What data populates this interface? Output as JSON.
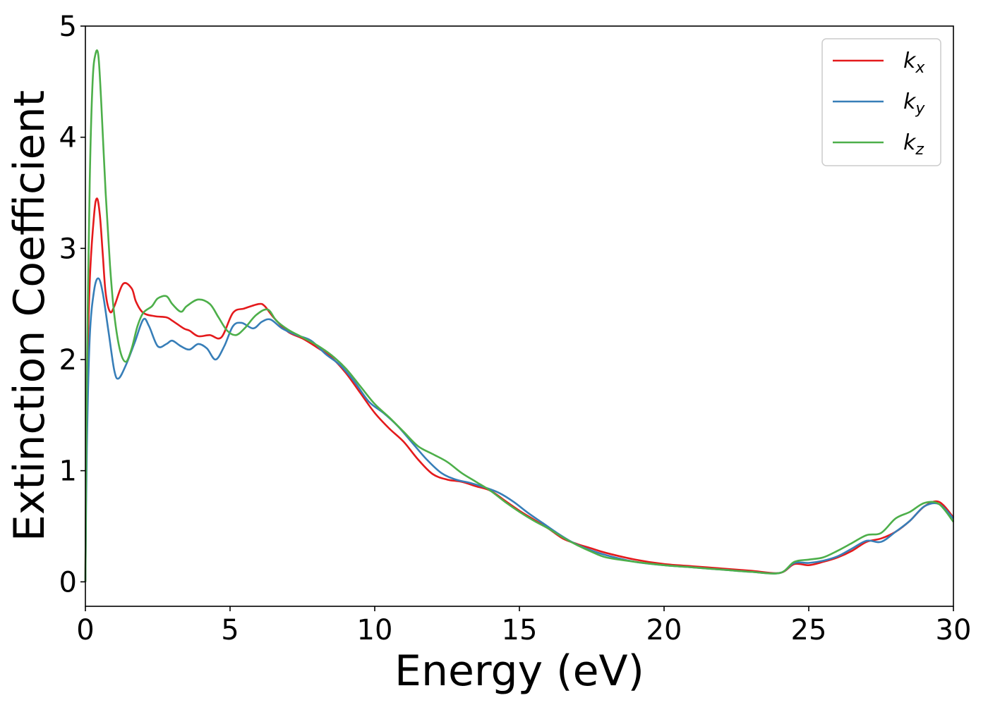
{
  "chart_data": {
    "type": "line",
    "title": "",
    "xlabel": "Energy (eV)",
    "ylabel": "Extinction Coefficient",
    "xlim": [
      0,
      30
    ],
    "ylim": [
      -0.22,
      5.0
    ],
    "xticks": [
      0,
      5,
      10,
      15,
      20,
      25,
      30
    ],
    "yticks": [
      0,
      1,
      2,
      3,
      4,
      5
    ],
    "grid": false,
    "legend": "top-right",
    "series": [
      {
        "name": "k_x",
        "label_base": "k",
        "label_sub": "x",
        "color": "#e41a1c",
        "x": [
          0,
          0.05,
          0.15,
          0.3,
          0.4,
          0.5,
          0.6,
          0.7,
          0.85,
          1.0,
          1.3,
          1.6,
          1.75,
          2.0,
          2.4,
          2.8,
          3.0,
          3.4,
          3.6,
          3.9,
          4.3,
          4.7,
          5.1,
          5.5,
          6.0,
          6.2,
          6.5,
          7.0,
          7.5,
          8.0,
          8.5,
          9.0,
          9.5,
          10.0,
          10.5,
          11.0,
          11.5,
          12.0,
          12.5,
          13.0,
          13.5,
          14.0,
          14.5,
          15.0,
          15.5,
          16.0,
          16.5,
          17.0,
          17.5,
          18.0,
          19.0,
          20.0,
          21.0,
          22.0,
          23.0,
          24.0,
          24.5,
          25.0,
          25.5,
          26.0,
          26.5,
          27.0,
          27.5,
          28.0,
          28.5,
          29.0,
          29.5,
          30.0
        ],
        "y": [
          0,
          1.6,
          2.7,
          3.3,
          3.45,
          3.3,
          2.95,
          2.6,
          2.43,
          2.48,
          2.68,
          2.64,
          2.52,
          2.42,
          2.39,
          2.38,
          2.35,
          2.28,
          2.26,
          2.21,
          2.22,
          2.2,
          2.42,
          2.46,
          2.5,
          2.48,
          2.38,
          2.25,
          2.19,
          2.11,
          2.02,
          1.88,
          1.7,
          1.52,
          1.38,
          1.26,
          1.1,
          0.97,
          0.92,
          0.9,
          0.86,
          0.82,
          0.73,
          0.64,
          0.56,
          0.48,
          0.39,
          0.34,
          0.3,
          0.26,
          0.2,
          0.16,
          0.14,
          0.12,
          0.1,
          0.08,
          0.16,
          0.15,
          0.18,
          0.22,
          0.28,
          0.36,
          0.39,
          0.45,
          0.55,
          0.68,
          0.72,
          0.58
        ]
      },
      {
        "name": "k_y",
        "label_base": "k",
        "label_sub": "y",
        "color": "#377eb8",
        "x": [
          0,
          0.05,
          0.15,
          0.3,
          0.45,
          0.6,
          0.8,
          1.0,
          1.15,
          1.4,
          1.7,
          2.0,
          2.2,
          2.5,
          2.8,
          3.0,
          3.3,
          3.6,
          3.9,
          4.2,
          4.5,
          4.8,
          5.1,
          5.4,
          5.8,
          6.1,
          6.4,
          6.8,
          7.3,
          7.8,
          8.3,
          8.8,
          9.3,
          9.8,
          10.3,
          10.8,
          11.3,
          11.8,
          12.3,
          12.8,
          13.3,
          13.8,
          14.3,
          14.8,
          15.3,
          15.8,
          16.3,
          16.8,
          17.3,
          18.0,
          19.0,
          20.0,
          21.0,
          22.0,
          23.0,
          24.0,
          24.5,
          25.0,
          25.5,
          26.0,
          26.5,
          27.0,
          27.5,
          28.0,
          28.5,
          29.0,
          29.5,
          30.0
        ],
        "y": [
          0,
          1.2,
          2.2,
          2.62,
          2.73,
          2.6,
          2.25,
          1.9,
          1.83,
          1.95,
          2.15,
          2.36,
          2.3,
          2.12,
          2.14,
          2.17,
          2.12,
          2.09,
          2.14,
          2.1,
          2.0,
          2.12,
          2.3,
          2.33,
          2.28,
          2.34,
          2.36,
          2.28,
          2.22,
          2.17,
          2.05,
          1.95,
          1.8,
          1.62,
          1.52,
          1.4,
          1.25,
          1.1,
          0.98,
          0.92,
          0.89,
          0.85,
          0.8,
          0.72,
          0.62,
          0.53,
          0.44,
          0.36,
          0.3,
          0.24,
          0.18,
          0.15,
          0.13,
          0.11,
          0.09,
          0.08,
          0.17,
          0.17,
          0.19,
          0.23,
          0.3,
          0.37,
          0.36,
          0.45,
          0.55,
          0.68,
          0.7,
          0.57
        ]
      },
      {
        "name": "k_z",
        "label_base": "k",
        "label_sub": "z",
        "color": "#4daf4a",
        "x": [
          0,
          0.05,
          0.15,
          0.25,
          0.35,
          0.45,
          0.55,
          0.7,
          0.85,
          1.0,
          1.2,
          1.4,
          1.6,
          1.8,
          2.0,
          2.3,
          2.5,
          2.8,
          3.0,
          3.3,
          3.5,
          3.9,
          4.3,
          4.6,
          4.9,
          5.2,
          5.5,
          5.9,
          6.3,
          6.6,
          7.0,
          7.5,
          8.0,
          8.5,
          9.0,
          9.5,
          10.0,
          10.5,
          11.0,
          11.5,
          12.0,
          12.5,
          13.0,
          13.5,
          14.0,
          14.5,
          15.0,
          15.5,
          16.0,
          16.5,
          17.0,
          17.5,
          18.0,
          19.0,
          20.0,
          21.0,
          22.0,
          23.0,
          24.0,
          24.5,
          25.0,
          25.5,
          26.0,
          26.5,
          27.0,
          27.5,
          28.0,
          28.5,
          29.0,
          29.5,
          30.0
        ],
        "y": [
          0,
          1.8,
          3.6,
          4.5,
          4.75,
          4.73,
          4.3,
          3.5,
          2.85,
          2.4,
          2.08,
          1.98,
          2.1,
          2.3,
          2.42,
          2.48,
          2.55,
          2.57,
          2.5,
          2.43,
          2.48,
          2.54,
          2.5,
          2.38,
          2.26,
          2.22,
          2.28,
          2.4,
          2.45,
          2.35,
          2.27,
          2.2,
          2.13,
          2.04,
          1.92,
          1.76,
          1.6,
          1.48,
          1.35,
          1.22,
          1.15,
          1.08,
          0.98,
          0.9,
          0.82,
          0.72,
          0.63,
          0.55,
          0.48,
          0.4,
          0.33,
          0.27,
          0.22,
          0.18,
          0.15,
          0.13,
          0.11,
          0.09,
          0.08,
          0.18,
          0.2,
          0.22,
          0.28,
          0.35,
          0.42,
          0.44,
          0.57,
          0.63,
          0.71,
          0.7,
          0.54
        ]
      }
    ]
  }
}
